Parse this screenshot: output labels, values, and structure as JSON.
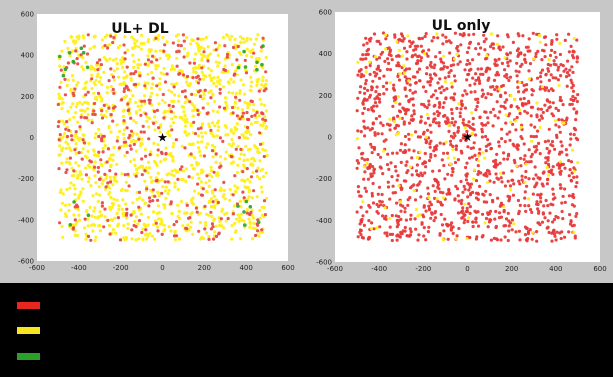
{
  "chart_data": [
    {
      "type": "scatter",
      "title": "UL+ DL",
      "xlim": [
        -600,
        600
      ],
      "ylim": [
        -600,
        600
      ],
      "xticks": [
        -600,
        -400,
        -200,
        0,
        200,
        400,
        600
      ],
      "yticks": [
        -600,
        -400,
        -200,
        0,
        200,
        400,
        600
      ],
      "xtick_labels": [
        "-600",
        "-400",
        "-200",
        "0",
        "200",
        "400",
        "600"
      ],
      "ytick_labels": [
        "-600",
        "-400",
        "-200",
        "0",
        "200",
        "400",
        "600"
      ],
      "grid": false,
      "center_marker": {
        "x": 0,
        "y": 0,
        "symbol": "star"
      },
      "scatter_extent": [
        -500,
        500
      ],
      "series": [
        {
          "color": "#ffef1a",
          "approx_count": 1300,
          "distribution": "uniform square"
        },
        {
          "color": "#e84a4a",
          "approx_count": 400,
          "distribution": "uniform square"
        },
        {
          "color": "#2fa62f",
          "approx_count": 24,
          "distribution": "square corners"
        }
      ]
    },
    {
      "type": "scatter",
      "title": "UL only",
      "xlim": [
        -600,
        600
      ],
      "ylim": [
        -600,
        600
      ],
      "xticks": [
        -600,
        -400,
        -200,
        0,
        200,
        400,
        600
      ],
      "yticks": [
        -600,
        -400,
        -200,
        0,
        200,
        400,
        600
      ],
      "xtick_labels": [
        "-600",
        "-400",
        "-200",
        "0",
        "200",
        "400",
        "600"
      ],
      "ytick_labels": [
        "-600",
        "-400",
        "-200",
        "0",
        "200",
        "400",
        "600"
      ],
      "grid": false,
      "center_marker": {
        "x": 0,
        "y": 0,
        "symbol": "star"
      },
      "scatter_extent": [
        -500,
        500
      ],
      "series": [
        {
          "color": "#e83a3a",
          "approx_count": 1500,
          "distribution": "uniform square"
        },
        {
          "color": "#ffef1a",
          "approx_count": 120,
          "distribution": "uniform square"
        }
      ]
    }
  ],
  "legend": [
    {
      "color": "#e8281e"
    },
    {
      "color": "#f5e61e"
    },
    {
      "color": "#2aa02a"
    }
  ]
}
